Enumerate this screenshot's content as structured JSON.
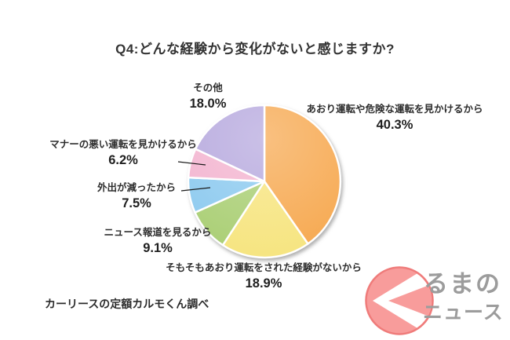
{
  "title": "Q4:どんな経験から変化がないと感じますか?",
  "source": "カーリースの定額カルモくん調べ",
  "logo": {
    "mark": "く",
    "text_top": "るまの",
    "text_bottom": "ニュース",
    "circle_fill": "#F89C9B",
    "circle_stroke": "#EF7B7A",
    "text_color": "#9C9C9C"
  },
  "chart_data": {
    "type": "pie",
    "title": "Q4:どんな経験から変化がないと感じますか?",
    "start_angle_deg": 0,
    "direction": "clockwise",
    "total": 100.0,
    "slices": [
      {
        "label": "あおり運転や危険な運転を見かけるから",
        "value": 40.3,
        "pct_label": "40.3%",
        "color": "#F6A84F"
      },
      {
        "label": "そもそもあおり運転をされた経験がないから",
        "value": 18.9,
        "pct_label": "18.9%",
        "color": "#F6E47E"
      },
      {
        "label": "ニュース報道を見るから",
        "value": 9.1,
        "pct_label": "9.1%",
        "color": "#A9CE73"
      },
      {
        "label": "外出が減ったから",
        "value": 7.5,
        "pct_label": "7.5%",
        "color": "#8BC9EF"
      },
      {
        "label": "マナーの悪い運転を見かけるから",
        "value": 6.2,
        "pct_label": "6.2%",
        "color": "#F3B3CF"
      },
      {
        "label": "その他",
        "value": 18.0,
        "pct_label": "18.0%",
        "color": "#B5A7DD"
      }
    ]
  }
}
